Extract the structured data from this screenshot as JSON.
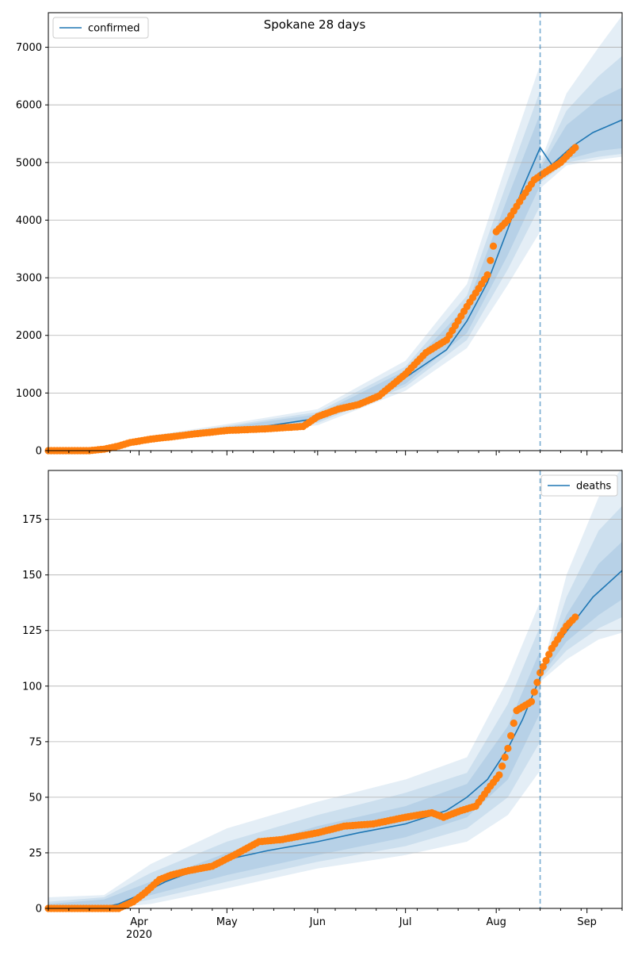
{
  "figure": {
    "title": "Spokane 28 days",
    "year_label": "2020",
    "forecast_start_date": "2020-08-16",
    "colors": {
      "model": "#1f77b4",
      "observed": "#ff7f0e",
      "band": "#1f77b4"
    }
  },
  "chart_data": [
    {
      "type": "line",
      "name": "confirmed",
      "legend": {
        "label": "confirmed",
        "placement": "upper-left"
      },
      "x_range": [
        "2020-03-01",
        "2020-09-13"
      ],
      "ylim": [
        0,
        7600
      ],
      "y_ticks": [
        0,
        1000,
        2000,
        3000,
        4000,
        5000,
        6000,
        7000
      ],
      "x_ticks": [
        {
          "date": "2020-04-01",
          "label": "Apr"
        },
        {
          "date": "2020-05-01",
          "label": "May"
        },
        {
          "date": "2020-06-01",
          "label": "Jun"
        },
        {
          "date": "2020-07-01",
          "label": "Jul"
        },
        {
          "date": "2020-08-01",
          "label": "Aug"
        },
        {
          "date": "2020-09-01",
          "label": "Sep"
        }
      ],
      "grid": "y",
      "model_median": {
        "x": [
          "2020-03-01",
          "2020-03-15",
          "2020-03-22",
          "2020-03-29",
          "2020-04-05",
          "2020-04-12",
          "2020-04-20",
          "2020-05-01",
          "2020-05-15",
          "2020-06-01",
          "2020-06-15",
          "2020-07-01",
          "2020-07-15",
          "2020-07-22",
          "2020-07-29",
          "2020-08-05",
          "2020-08-10",
          "2020-08-16",
          "2020-08-20",
          "2020-08-27",
          "2020-09-03",
          "2020-09-13"
        ],
        "y": [
          0,
          0,
          40,
          120,
          190,
          250,
          300,
          380,
          430,
          560,
          780,
          1270,
          1750,
          2250,
          2920,
          3850,
          4550,
          5260,
          4960,
          5280,
          5520,
          5740
        ]
      },
      "observed": {
        "x": [
          "2020-03-01",
          "2020-03-15",
          "2020-03-20",
          "2020-03-25",
          "2020-03-29",
          "2020-04-05",
          "2020-04-12",
          "2020-04-20",
          "2020-05-01",
          "2020-05-15",
          "2020-05-27",
          "2020-06-01",
          "2020-06-08",
          "2020-06-15",
          "2020-06-22",
          "2020-07-01",
          "2020-07-08",
          "2020-07-15",
          "2020-07-22",
          "2020-07-29",
          "2020-08-01",
          "2020-08-05",
          "2020-08-10",
          "2020-08-14",
          "2020-08-18",
          "2020-08-23",
          "2020-08-28"
        ],
        "y": [
          0,
          0,
          25,
          80,
          140,
          200,
          240,
          290,
          350,
          380,
          420,
          590,
          720,
          800,
          950,
          1330,
          1700,
          1920,
          2500,
          3050,
          3800,
          4000,
          4400,
          4700,
          4840,
          5000,
          5260
        ]
      },
      "observed_step_days": 1,
      "bands": [
        {
          "x": [
            "2020-03-01",
            "2020-03-20",
            "2020-04-05",
            "2020-05-01",
            "2020-06-01",
            "2020-07-01",
            "2020-07-22",
            "2020-08-05",
            "2020-08-16",
            "2020-08-16",
            "2020-08-25",
            "2020-09-05",
            "2020-09-13"
          ],
          "lo": [
            0,
            0,
            150,
            300,
            440,
            1040,
            1780,
            2880,
            3800,
            4550,
            4950,
            5050,
            5100
          ],
          "hi": [
            0,
            80,
            260,
            460,
            720,
            1560,
            2890,
            5050,
            6700,
            5000,
            6200,
            7000,
            7550
          ]
        },
        {
          "x": [
            "2020-03-01",
            "2020-03-20",
            "2020-04-05",
            "2020-05-01",
            "2020-06-01",
            "2020-07-01",
            "2020-07-22",
            "2020-08-05",
            "2020-08-16",
            "2020-08-16",
            "2020-08-25",
            "2020-09-05",
            "2020-09-13"
          ],
          "lo": [
            0,
            5,
            165,
            330,
            480,
            1110,
            1920,
            3150,
            4250,
            4650,
            5000,
            5100,
            5150
          ],
          "hi": [
            0,
            70,
            240,
            430,
            670,
            1460,
            2690,
            4700,
            6250,
            4950,
            5900,
            6500,
            6850
          ]
        },
        {
          "x": [
            "2020-03-01",
            "2020-03-20",
            "2020-04-05",
            "2020-05-01",
            "2020-06-01",
            "2020-07-01",
            "2020-07-22",
            "2020-08-05",
            "2020-08-16",
            "2020-08-16",
            "2020-08-25",
            "2020-09-05",
            "2020-09-13"
          ],
          "lo": [
            0,
            10,
            175,
            350,
            510,
            1160,
            2040,
            3400,
            4600,
            4720,
            5050,
            5200,
            5250
          ],
          "hi": [
            0,
            60,
            225,
            410,
            630,
            1390,
            2520,
            4400,
            5850,
            4900,
            5650,
            6100,
            6300
          ]
        }
      ]
    },
    {
      "type": "line",
      "name": "deaths",
      "legend": {
        "label": "deaths",
        "placement": "upper-right"
      },
      "x_range": [
        "2020-03-01",
        "2020-09-13"
      ],
      "ylim": [
        0,
        197
      ],
      "y_ticks": [
        0,
        25,
        50,
        75,
        100,
        125,
        150,
        175
      ],
      "x_ticks": [
        {
          "date": "2020-04-01",
          "label": "Apr"
        },
        {
          "date": "2020-05-01",
          "label": "May"
        },
        {
          "date": "2020-06-01",
          "label": "Jun"
        },
        {
          "date": "2020-07-01",
          "label": "Jul"
        },
        {
          "date": "2020-08-01",
          "label": "Aug"
        },
        {
          "date": "2020-09-01",
          "label": "Sep"
        }
      ],
      "grid": "y",
      "model_median": {
        "x": [
          "2020-03-01",
          "2020-03-18",
          "2020-03-25",
          "2020-04-01",
          "2020-04-10",
          "2020-04-20",
          "2020-05-01",
          "2020-05-15",
          "2020-06-01",
          "2020-06-15",
          "2020-07-01",
          "2020-07-15",
          "2020-07-22",
          "2020-07-29",
          "2020-08-05",
          "2020-08-10",
          "2020-08-16",
          "2020-08-20",
          "2020-08-27",
          "2020-09-03",
          "2020-09-13"
        ],
        "y": [
          0,
          0,
          2,
          6,
          12,
          17,
          22,
          26,
          30,
          34,
          38,
          44,
          50,
          58,
          72,
          85,
          104,
          116,
          128,
          140,
          152
        ]
      },
      "observed": {
        "x": [
          "2020-03-01",
          "2020-03-25",
          "2020-03-30",
          "2020-04-03",
          "2020-04-08",
          "2020-04-12",
          "2020-04-18",
          "2020-04-26",
          "2020-05-05",
          "2020-05-12",
          "2020-05-20",
          "2020-06-01",
          "2020-06-10",
          "2020-06-20",
          "2020-07-01",
          "2020-07-10",
          "2020-07-14",
          "2020-07-20",
          "2020-07-25",
          "2020-07-30",
          "2020-08-02",
          "2020-08-05",
          "2020-08-08",
          "2020-08-13",
          "2020-08-16",
          "2020-08-20",
          "2020-08-25",
          "2020-08-28"
        ],
        "y": [
          0,
          0,
          3,
          7,
          13,
          15,
          17,
          19,
          25,
          30,
          31,
          34,
          37,
          38,
          41,
          43,
          41,
          44,
          46,
          55,
          60,
          72,
          89,
          93,
          106,
          117,
          127,
          131
        ]
      },
      "observed_step_days": 1,
      "bands": [
        {
          "x": [
            "2020-03-01",
            "2020-03-20",
            "2020-04-05",
            "2020-05-01",
            "2020-06-01",
            "2020-07-01",
            "2020-07-22",
            "2020-08-05",
            "2020-08-16",
            "2020-08-16",
            "2020-08-25",
            "2020-09-05",
            "2020-09-13"
          ],
          "lo": [
            0,
            0,
            2,
            9,
            18,
            24,
            30,
            42,
            62,
            102,
            112,
            121,
            124
          ],
          "hi": [
            5,
            6,
            20,
            36,
            48,
            58,
            68,
            103,
            138,
            104,
            150,
            185,
            198
          ]
        },
        {
          "x": [
            "2020-03-01",
            "2020-03-20",
            "2020-04-05",
            "2020-05-01",
            "2020-06-01",
            "2020-07-01",
            "2020-07-22",
            "2020-08-05",
            "2020-08-16",
            "2020-08-16",
            "2020-08-25",
            "2020-09-05",
            "2020-09-13"
          ],
          "lo": [
            0,
            0,
            4,
            12,
            21,
            28,
            36,
            50,
            75,
            103,
            116,
            126,
            131
          ],
          "hi": [
            3,
            5,
            16,
            30,
            42,
            52,
            61,
            92,
            127,
            104,
            140,
            170,
            181
          ]
        },
        {
          "x": [
            "2020-03-01",
            "2020-03-20",
            "2020-04-05",
            "2020-05-01",
            "2020-06-01",
            "2020-07-01",
            "2020-07-22",
            "2020-08-05",
            "2020-08-16",
            "2020-08-16",
            "2020-08-25",
            "2020-09-05",
            "2020-09-13"
          ],
          "lo": [
            0,
            0,
            6,
            15,
            24,
            32,
            41,
            58,
            88,
            104,
            120,
            132,
            139
          ],
          "hi": [
            2,
            4,
            12,
            25,
            37,
            46,
            56,
            82,
            116,
            105,
            132,
            155,
            165
          ]
        }
      ]
    }
  ]
}
